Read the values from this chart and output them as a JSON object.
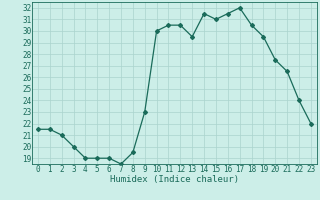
{
  "x": [
    0,
    1,
    2,
    3,
    4,
    5,
    6,
    7,
    8,
    9,
    10,
    11,
    12,
    13,
    14,
    15,
    16,
    17,
    18,
    19,
    20,
    21,
    22,
    23
  ],
  "y": [
    21.5,
    21.5,
    21.0,
    20.0,
    19.0,
    19.0,
    19.0,
    18.5,
    19.5,
    23.0,
    30.0,
    30.5,
    30.5,
    29.5,
    31.5,
    31.0,
    31.5,
    32.0,
    30.5,
    29.5,
    27.5,
    26.5,
    24.0,
    22.0
  ],
  "line_color": "#1a6b5a",
  "marker": "D",
  "marker_size": 2.0,
  "linewidth": 0.9,
  "xlabel": "Humidex (Indice chaleur)",
  "xlim": [
    -0.5,
    23.5
  ],
  "ylim": [
    18.5,
    32.5
  ],
  "yticks": [
    19,
    20,
    21,
    22,
    23,
    24,
    25,
    26,
    27,
    28,
    29,
    30,
    31,
    32
  ],
  "xticks": [
    0,
    1,
    2,
    3,
    4,
    5,
    6,
    7,
    8,
    9,
    10,
    11,
    12,
    13,
    14,
    15,
    16,
    17,
    18,
    19,
    20,
    21,
    22,
    23
  ],
  "bg_color": "#cceee8",
  "grid_color": "#aad4ce",
  "label_fontsize": 6.5,
  "tick_fontsize": 5.5
}
